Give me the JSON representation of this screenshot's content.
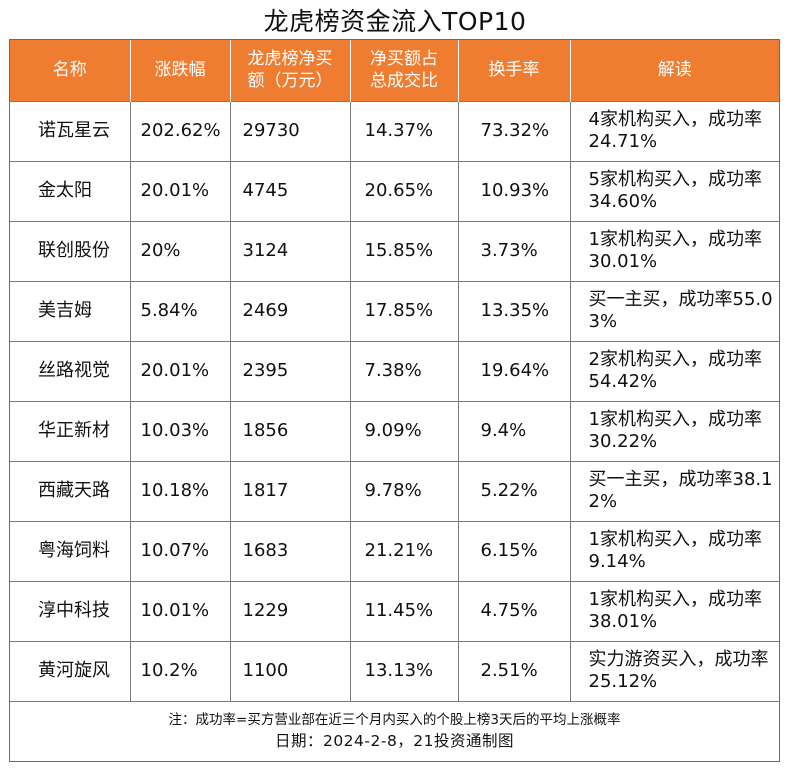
{
  "title": "龙虎榜资金流入TOP10",
  "headers": {
    "name": "名称",
    "change": "涨跌幅",
    "net_line1": "龙虎榜净买",
    "net_line2": "额（万元）",
    "ratio_line1": "净买额占",
    "ratio_line2": "总成交比",
    "turnover": "换手率",
    "comment": "解读"
  },
  "rows": [
    {
      "name": "诺瓦星云",
      "change": "202.62%",
      "net": "29730",
      "ratio": "14.37%",
      "turnover": "73.32%",
      "comment": "4家机构买入，成功率24.71%"
    },
    {
      "name": "金太阳",
      "change": "20.01%",
      "net": "4745",
      "ratio": "20.65%",
      "turnover": "10.93%",
      "comment": "5家机构买入，成功率34.60%"
    },
    {
      "name": "联创股份",
      "change": "20%",
      "net": "3124",
      "ratio": "15.85%",
      "turnover": "3.73%",
      "comment": "1家机构买入，成功率30.01%"
    },
    {
      "name": "美吉姆",
      "change": "5.84%",
      "net": "2469",
      "ratio": "17.85%",
      "turnover": "13.35%",
      "comment": "买一主买，成功率55.03%"
    },
    {
      "name": "丝路视觉",
      "change": "20.01%",
      "net": "2395",
      "ratio": "7.38%",
      "turnover": "19.64%",
      "comment": "2家机构买入，成功率54.42%"
    },
    {
      "name": "华正新材",
      "change": "10.03%",
      "net": "1856",
      "ratio": "9.09%",
      "turnover": "9.4%",
      "comment": "1家机构买入，成功率30.22%"
    },
    {
      "name": "西藏天路",
      "change": "10.18%",
      "net": "1817",
      "ratio": "9.78%",
      "turnover": "5.22%",
      "comment": "买一主买，成功率38.12%"
    },
    {
      "name": "粤海饲料",
      "change": "10.07%",
      "net": "1683",
      "ratio": "21.21%",
      "turnover": "6.15%",
      "comment": "1家机构买入，成功率9.14%"
    },
    {
      "name": "淳中科技",
      "change": "10.01%",
      "net": "1229",
      "ratio": "11.45%",
      "turnover": "4.75%",
      "comment": "1家机构买入，成功率38.01%"
    },
    {
      "name": "黄河旋风",
      "change": "10.2%",
      "net": "1100",
      "ratio": "13.13%",
      "turnover": "2.51%",
      "comment": "实力游资买入，成功率25.12%"
    }
  ],
  "footer": {
    "note": "注：成功率=买方营业部在近三个月内买入的个股上榜3天后的平均上涨概率",
    "date": "日期：2024-2-8，21投资通制图"
  },
  "colors": {
    "header_bg": "#ef7d31",
    "header_text": "#ffffff"
  }
}
